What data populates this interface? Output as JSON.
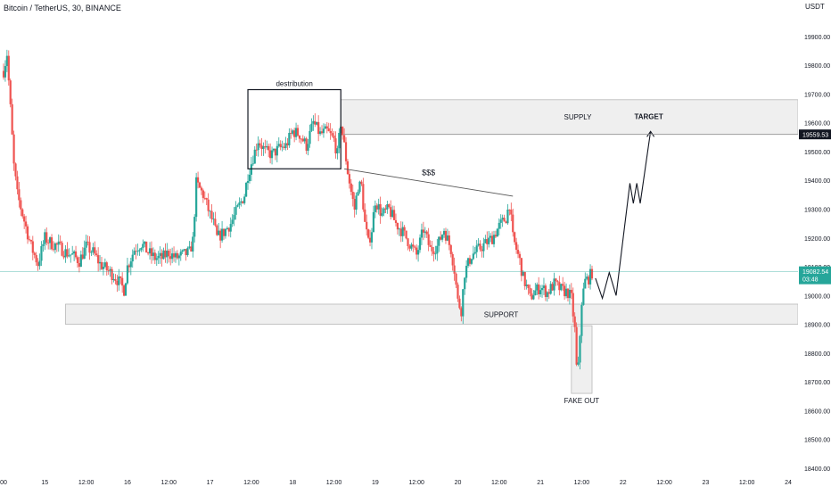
{
  "header": {
    "symbol": "Bitcoin / TetherUS, 30, BINANCE",
    "currency": "USDT"
  },
  "colors": {
    "up": "#26a69a",
    "down": "#ef5350",
    "box_fill": "#e9e9ea",
    "box_border": "#b8b8b8",
    "price_line": "#26a69a",
    "drawing": "#131722"
  },
  "chart_data": {
    "type": "candlestick",
    "title": "",
    "y_axis": {
      "min": 18400,
      "max": 20000,
      "ticks": [
        19900,
        19800,
        19700,
        19600,
        19500,
        19400,
        19300,
        19200,
        19100,
        19000,
        18900,
        18800,
        18700,
        18600,
        18500,
        18400
      ],
      "tick_labels": [
        "19900.00",
        "19800.00",
        "19700.00",
        "19600.00",
        "19500.00",
        "19400.00",
        "19300.00",
        "19200.00",
        "19100.00",
        "19000.00",
        "18900.00",
        "18800.00",
        "18700.00",
        "18600.00",
        "18500.00",
        "18400.00"
      ]
    },
    "x_axis": {
      "unit": "hours from Sep 14 00:00",
      "range": [
        0,
        236
      ],
      "ticks": [
        {
          "t": 0,
          "label": "00"
        },
        {
          "t": 12,
          "label": "15"
        },
        {
          "t": 24,
          "label": "12:00"
        },
        {
          "t": 36,
          "label": "16"
        },
        {
          "t": 48,
          "label": "12:00"
        },
        {
          "t": 60,
          "label": "17"
        },
        {
          "t": 72,
          "label": "12:00"
        },
        {
          "t": 84,
          "label": "18"
        },
        {
          "t": 96,
          "label": "12:00"
        },
        {
          "t": 108,
          "label": "19"
        },
        {
          "t": 120,
          "label": "12:00"
        },
        {
          "t": 132,
          "label": "20"
        },
        {
          "t": 144,
          "label": "12:00"
        },
        {
          "t": 156,
          "label": "21"
        },
        {
          "t": 168,
          "label": "12:00"
        },
        {
          "t": 180,
          "label": "22"
        },
        {
          "t": 192,
          "label": "12:00"
        },
        {
          "t": 204,
          "label": "23"
        },
        {
          "t": 216,
          "label": "12:00"
        },
        {
          "t": 228,
          "label": "24"
        }
      ]
    },
    "anchors": [
      [
        -1,
        19700
      ],
      [
        0,
        19780
      ],
      [
        1,
        19840
      ],
      [
        2,
        19650
      ],
      [
        3,
        19450
      ],
      [
        4,
        19350
      ],
      [
        6,
        19260
      ],
      [
        8,
        19170
      ],
      [
        10,
        19110
      ],
      [
        12,
        19200
      ],
      [
        14,
        19180
      ],
      [
        16,
        19170
      ],
      [
        18,
        19150
      ],
      [
        20,
        19140
      ],
      [
        22,
        19120
      ],
      [
        24,
        19170
      ],
      [
        26,
        19150
      ],
      [
        28,
        19110
      ],
      [
        30,
        19090
      ],
      [
        32,
        19070
      ],
      [
        34,
        19040
      ],
      [
        35,
        19020
      ],
      [
        36,
        19100
      ],
      [
        38,
        19160
      ],
      [
        40,
        19180
      ],
      [
        42,
        19150
      ],
      [
        44,
        19130
      ],
      [
        46,
        19130
      ],
      [
        48,
        19150
      ],
      [
        50,
        19130
      ],
      [
        52,
        19140
      ],
      [
        54,
        19150
      ],
      [
        55,
        19190
      ],
      [
        56,
        19390
      ],
      [
        58,
        19350
      ],
      [
        60,
        19280
      ],
      [
        61,
        19250
      ],
      [
        62,
        19200
      ],
      [
        64,
        19220
      ],
      [
        66,
        19250
      ],
      [
        68,
        19300
      ],
      [
        70,
        19350
      ],
      [
        71,
        19420
      ],
      [
        72,
        19460
      ],
      [
        74,
        19540
      ],
      [
        76,
        19500
      ],
      [
        78,
        19490
      ],
      [
        80,
        19510
      ],
      [
        82,
        19520
      ],
      [
        84,
        19570
      ],
      [
        86,
        19560
      ],
      [
        88,
        19520
      ],
      [
        90,
        19600
      ],
      [
        92,
        19560
      ],
      [
        94,
        19570
      ],
      [
        96,
        19540
      ],
      [
        97,
        19490
      ],
      [
        98,
        19600
      ],
      [
        99,
        19520
      ],
      [
        100,
        19430
      ],
      [
        101,
        19360
      ],
      [
        102,
        19300
      ],
      [
        103,
        19380
      ],
      [
        104,
        19380
      ],
      [
        105,
        19250
      ],
      [
        106,
        19180
      ],
      [
        107,
        19230
      ],
      [
        108,
        19330
      ],
      [
        110,
        19280
      ],
      [
        112,
        19300
      ],
      [
        114,
        19250
      ],
      [
        116,
        19220
      ],
      [
        118,
        19180
      ],
      [
        120,
        19140
      ],
      [
        122,
        19230
      ],
      [
        124,
        19160
      ],
      [
        126,
        19170
      ],
      [
        128,
        19230
      ],
      [
        130,
        19160
      ],
      [
        131,
        19090
      ],
      [
        132,
        18980
      ],
      [
        133,
        18950
      ],
      [
        134,
        19080
      ],
      [
        136,
        19140
      ],
      [
        138,
        19160
      ],
      [
        140,
        19180
      ],
      [
        142,
        19200
      ],
      [
        144,
        19240
      ],
      [
        146,
        19270
      ],
      [
        147,
        19320
      ],
      [
        148,
        19200
      ],
      [
        150,
        19120
      ],
      [
        151,
        19060
      ],
      [
        152,
        19030
      ],
      [
        153,
        18990
      ],
      [
        154,
        19010
      ],
      [
        156,
        19030
      ],
      [
        158,
        19010
      ],
      [
        160,
        19040
      ],
      [
        162,
        19020
      ],
      [
        164,
        19010
      ],
      [
        165,
        18990
      ],
      [
        166,
        18880
      ],
      [
        167,
        18750
      ],
      [
        168,
        18980
      ],
      [
        169,
        19050
      ],
      [
        170,
        19060
      ],
      [
        171,
        19080
      ]
    ],
    "projection_path": [
      [
        172,
        19060
      ],
      [
        174,
        18990
      ],
      [
        176,
        19080
      ],
      [
        178,
        19000
      ],
      [
        182,
        19390
      ],
      [
        183,
        19320
      ],
      [
        184,
        19390
      ],
      [
        185,
        19320
      ],
      [
        188,
        19570
      ]
    ],
    "annotations": [
      {
        "label": "destribution",
        "kind": "box",
        "t0": 71,
        "t1": 98,
        "y0": 19440,
        "y1": 19715
      },
      {
        "label": "SUPPLY",
        "kind": "zone",
        "t0": 98,
        "t1": 236,
        "y0": 19560,
        "y1": 19680
      },
      {
        "label": "SUPPORT",
        "kind": "zone",
        "t0": 18,
        "t1": 236,
        "y0": 18900,
        "y1": 18970
      },
      {
        "label": "FAKE OUT",
        "kind": "zone",
        "t0": 165,
        "t1": 171,
        "y0": 18660,
        "y1": 18895
      },
      {
        "label": "$$$",
        "kind": "line",
        "t0": 99,
        "t1": 148,
        "y0": 19440,
        "y1": 19345
      },
      {
        "label": "TARGET",
        "kind": "target",
        "t": 188,
        "y": 19570
      }
    ],
    "levels": {
      "target_level": {
        "value": 19559.53,
        "label": "19559.53"
      },
      "current_price": {
        "value": 19082.54,
        "label": "19082.54",
        "countdown": "03:48"
      }
    }
  }
}
